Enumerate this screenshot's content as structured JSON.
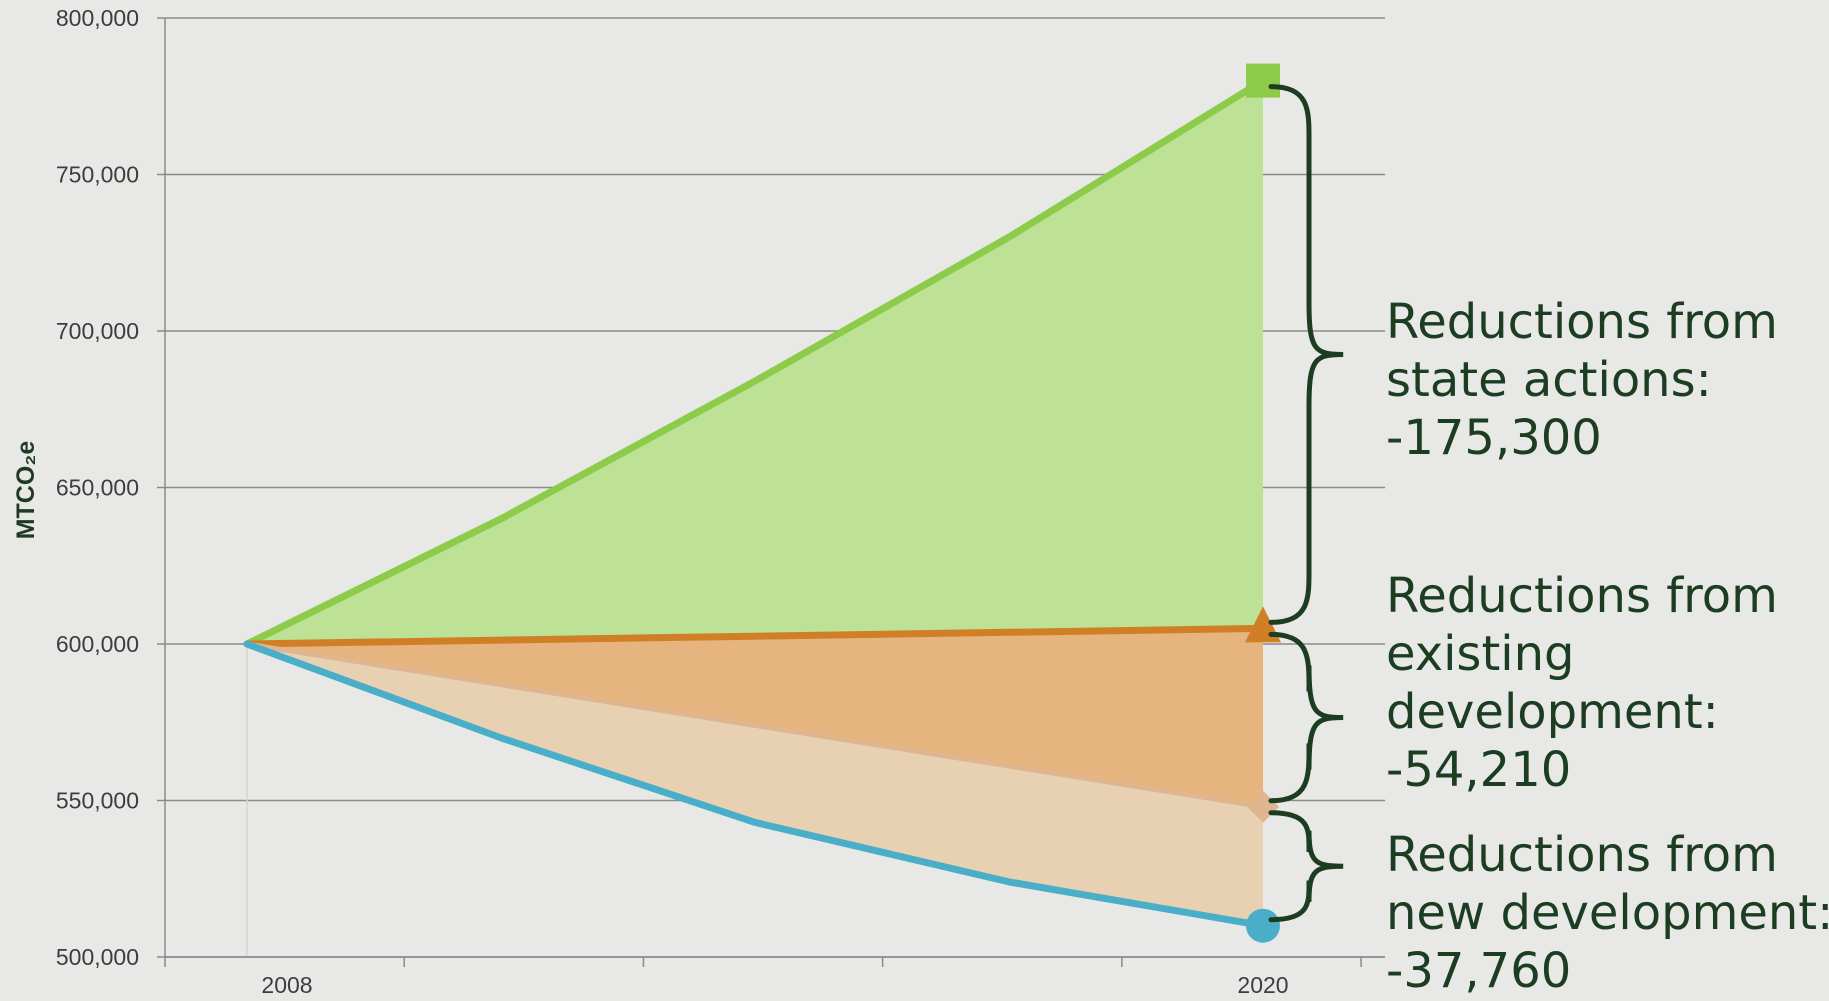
{
  "chart_data": {
    "type": "area",
    "ylabel": "MTCO₂e",
    "ylim": [
      500000,
      800000
    ],
    "y_ticks": [
      {
        "value": 500000,
        "label": "500,000"
      },
      {
        "value": 550000,
        "label": "550,000"
      },
      {
        "value": 600000,
        "label": "600,000"
      },
      {
        "value": 650000,
        "label": "650,000"
      },
      {
        "value": 700000,
        "label": "700,000"
      },
      {
        "value": 750000,
        "label": "750,000"
      },
      {
        "value": 800000,
        "label": "800,000"
      }
    ],
    "x_ticks": [
      {
        "value": 2008,
        "label": "2008"
      },
      {
        "value": 2020,
        "label": "2020"
      }
    ],
    "xlim": [
      2007,
      2021.5
    ],
    "grid": true,
    "series": [
      {
        "key": "green",
        "color": "#8dcb4a",
        "fill": "#bde296",
        "marker": "square",
        "x": [
          2008,
          2011,
          2014,
          2017,
          2020
        ],
        "values": [
          600000,
          640000,
          684000,
          730000,
          780000
        ]
      },
      {
        "key": "orange",
        "color": "#d17f26",
        "fill": "#e6b47e",
        "marker": "triangle",
        "x": [
          2008,
          2020
        ],
        "values": [
          600000,
          605000
        ]
      },
      {
        "key": "tan",
        "color": "#dfb690",
        "fill": "#e8d1b3",
        "marker": "diamond",
        "x": [
          2008,
          2020
        ],
        "values": [
          600000,
          548000
        ]
      },
      {
        "key": "blue",
        "color": "#4aaec9",
        "fill": null,
        "marker": "circle",
        "x": [
          2008,
          2011,
          2014,
          2017,
          2020
        ],
        "values": [
          600000,
          570000,
          543000,
          524000,
          510000
        ]
      }
    ],
    "annotations": [
      {
        "key": "state",
        "lines": [
          "Reductions from",
          "state actions:",
          "-175,300"
        ]
      },
      {
        "key": "existing",
        "lines": [
          "Reductions from",
          "existing",
          "development:",
          "-54,210"
        ]
      },
      {
        "key": "new",
        "lines": [
          "Reductions from",
          "new development:",
          "-37,760"
        ]
      }
    ]
  }
}
